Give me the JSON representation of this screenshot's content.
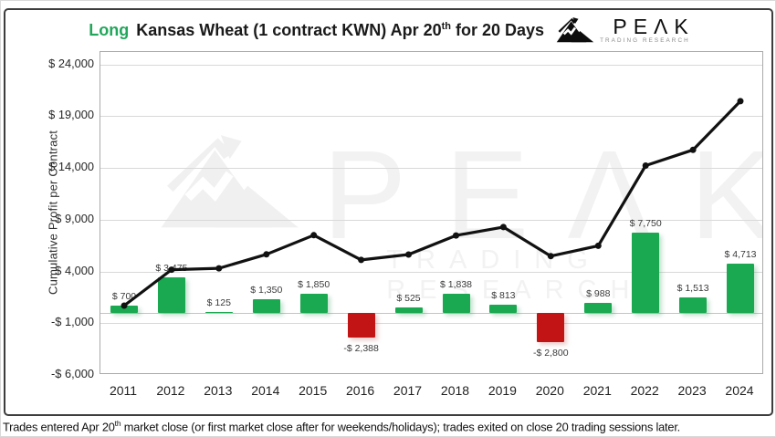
{
  "title": {
    "highlight": "Long",
    "main_pre": "Kansas Wheat (1 contract KWN) Apr 20",
    "superscript": "th",
    "main_post": "for 20 Days"
  },
  "logo": {
    "brand": "PEΛK",
    "sub": "TRADING RESEARCH"
  },
  "watermark": {
    "brand": "PEΛK",
    "sub": "TRADING RESEARCH"
  },
  "footnote": {
    "pre": "Trades entered Apr 20",
    "sup": "th",
    "post": " market close (or first market close after for weekends/holidays); trades exited on close 20 trading sessions later."
  },
  "chart_data": {
    "type": "bar+line",
    "title": "Long Kansas Wheat (1 contract KWN) Apr 20th for 20 Days",
    "ylabel": "Cumulative Profit per Contract",
    "xlabel": "",
    "categories": [
      "2011",
      "2012",
      "2013",
      "2014",
      "2015",
      "2016",
      "2017",
      "2018",
      "2019",
      "2020",
      "2021",
      "2022",
      "2023",
      "2024"
    ],
    "series": [
      {
        "name": "annual-profit-bars",
        "type": "bar",
        "values": [
          700,
          3475,
          125,
          1350,
          1850,
          -2388,
          525,
          1838,
          813,
          -2800,
          988,
          7750,
          1513,
          4713
        ],
        "labels": [
          "$ 700",
          "$ 3,475",
          "$ 125",
          "$ 1,350",
          "$ 1,850",
          "-$ 2,388",
          "$ 525",
          "$ 1,838",
          "$ 813",
          "-$ 2,800",
          "$ 988",
          "$ 7,750",
          "$ 1,513",
          "$ 4,713"
        ]
      },
      {
        "name": "cumulative-profit-line",
        "type": "line",
        "values": [
          700,
          4175,
          4300,
          5650,
          7500,
          5112,
          5637,
          7475,
          8288,
          5488,
          6476,
          14226,
          15739,
          20452
        ]
      }
    ],
    "y_ticks": [
      {
        "value": 24000,
        "label": "$ 24,000"
      },
      {
        "value": 19000,
        "label": "$ 19,000"
      },
      {
        "value": 14000,
        "label": "$ 14,000"
      },
      {
        "value": 9000,
        "label": "$ 9,000"
      },
      {
        "value": 4000,
        "label": "$ 4,000"
      },
      {
        "value": -1000,
        "label": "-$ 1,000"
      },
      {
        "value": -6000,
        "label": "-$ 6,000"
      }
    ],
    "ylim": [
      -6000,
      25200
    ],
    "grid": true,
    "legend": "none",
    "colors": {
      "bar_positive": "#1AA851",
      "bar_negative": "#C21414",
      "line": "#111111",
      "title_highlight": "#21A75B",
      "gridline": "#d9d9d9",
      "axis_text": "#262626",
      "watermark": "#f2f2f2"
    }
  }
}
